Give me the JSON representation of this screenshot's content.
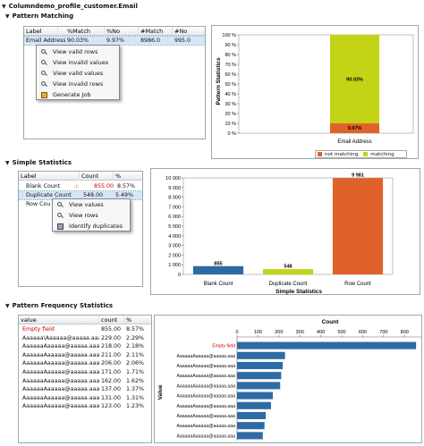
{
  "title": "Columndemo_profile_customer.Email",
  "colors": {
    "orange": "#e0622a",
    "green": "#c3d417",
    "blue": "#2e6ba4",
    "red": "#d00000"
  },
  "pattern_matching": {
    "header": "Pattern Matching",
    "columns": [
      "Label",
      "%Match",
      "%No Match",
      "#Match",
      "#No Match"
    ],
    "row": [
      "Email Address",
      "90.03%",
      "9.97%",
      "8986.0",
      "995.0"
    ],
    "menu": [
      "View valid rows",
      "View invalid values",
      "View valid values",
      "View invalid rows",
      "Generate Job"
    ]
  },
  "simple_statistics": {
    "header": "Simple Statistics",
    "columns": [
      "Label",
      "Count",
      "%"
    ],
    "rows": [
      {
        "label": "Blank Count",
        "count": "855.00",
        "pct": "8.57%"
      },
      {
        "label": "Duplicate Count",
        "count": "548.00",
        "pct": "5.49%"
      },
      {
        "label": "Row Cou",
        "count": "",
        "pct": ""
      }
    ],
    "menu": [
      "View values",
      "View rows",
      "Identify duplicates"
    ]
  },
  "pattern_frequency": {
    "header": "Pattern Frequency Statistics",
    "columns": [
      "value",
      "count",
      "%"
    ],
    "rows": [
      {
        "value": "Empty field",
        "count": "855.00",
        "pct": "8.57%"
      },
      {
        "value": "Aaaaaa\\Aaaaaa@aaaaa.aaa",
        "count": "229.00",
        "pct": "2.29%"
      },
      {
        "value": "AaaaaaAaaaaa@aaaaa.aaaa",
        "count": "218.00",
        "pct": "2.18%"
      },
      {
        "value": "AaaaaaAaaaaa@aaaaa.aaa",
        "count": "211.00",
        "pct": "2.11%"
      },
      {
        "value": "AaaaaaAaaaaa@aaaaa.aaa",
        "count": "206.00",
        "pct": "2.06%"
      },
      {
        "value": "AaaaaaAaaaaa@aaaaa.aaa",
        "count": "171.00",
        "pct": "1.71%"
      },
      {
        "value": "AaaaaaAaaaaa@aaaaa.aaa",
        "count": "162.00",
        "pct": "1.62%"
      },
      {
        "value": "AaaaaaAaaaaa@aaaaa.aaa",
        "count": "137.00",
        "pct": "1.37%"
      },
      {
        "value": "AaaaaaAaaaaa@aaaaa.aaa",
        "count": "131.00",
        "pct": "1.31%"
      },
      {
        "value": "AaaaaaAaaaaa@aaaaa.aaa",
        "count": "123.00",
        "pct": "1.23%"
      }
    ]
  },
  "chart_data": [
    {
      "type": "bar",
      "ylabel": "Pattern Statistics",
      "categories": [
        "Email Address"
      ],
      "series": [
        {
          "name": "not matching",
          "values": [
            9.97
          ]
        },
        {
          "name": "matching",
          "values": [
            90.03
          ]
        }
      ],
      "data_labels": [
        "9.97%",
        "90.03%"
      ],
      "yticks": [
        "0 %",
        "10 %",
        "20 %",
        "30 %",
        "40 %",
        "50 %",
        "60 %",
        "70 %",
        "80 %",
        "90 %",
        "100 %"
      ],
      "ylim": [
        0,
        100
      ],
      "legend": [
        "not matching",
        "matching"
      ],
      "legend_position": "bottom"
    },
    {
      "type": "bar",
      "xlabel": "Simple Statistics",
      "categories": [
        "Blank Count",
        "Duplicate Count",
        "Row Count"
      ],
      "values": [
        855,
        548,
        9981
      ],
      "data_labels": [
        "855",
        "548",
        "9 981"
      ],
      "yticks": [
        "0",
        "1 000",
        "2 000",
        "3 000",
        "4 000",
        "5 000",
        "6 000",
        "7 000",
        "8 000",
        "9 000",
        "10 000"
      ],
      "ylim": [
        0,
        10000
      ]
    },
    {
      "type": "bar",
      "orientation": "horizontal",
      "xlabel": "Count",
      "ylabel": "Value",
      "xticks": [
        "0",
        "100",
        "200",
        "300",
        "400",
        "500",
        "600",
        "700",
        "800"
      ],
      "xlim": [
        0,
        880
      ],
      "categories": [
        "Empty field",
        "AaaaaaAaaaaa@aaaaa.aaa",
        "AaaaaaAaaaaa@aaaaa.aaa",
        "AaaaaaAaaaaa@aaaaa.aaa",
        "AaaaaaAaaaaa@aaaaa.aaa",
        "AaaaaaAaaaaa@aaaaa.aaa",
        "AaaaaaAaaaaa@aaaaa.aaa",
        "AaaaaaAaaaaa@aaaaa.aaa",
        "AaaaaaAaaaaa@aaaaa.aaa",
        "AaaaaaAaaaaa@aaaaa.aaa"
      ],
      "values": [
        855,
        229,
        218,
        211,
        206,
        171,
        162,
        137,
        131,
        123
      ]
    }
  ]
}
